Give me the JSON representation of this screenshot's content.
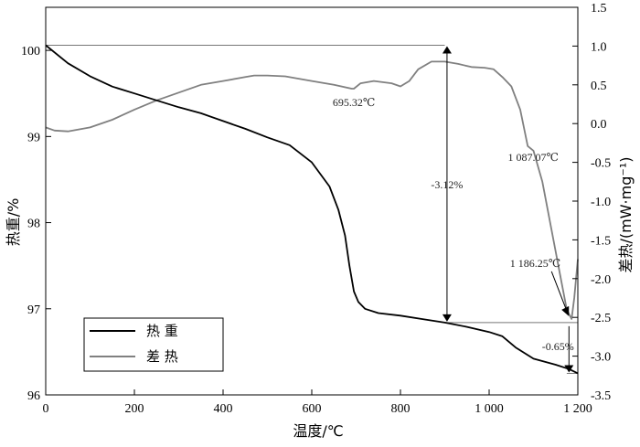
{
  "chart_data": {
    "type": "line",
    "title": "",
    "xlabel": "温度/℃",
    "ylabel_left": "热重/%",
    "ylabel_right": "差热/(mW·mg⁻¹)",
    "xlim": [
      0,
      1200
    ],
    "ylim_left": [
      96,
      100.5
    ],
    "ylim_right": [
      -3.5,
      1.5
    ],
    "x_ticks": [
      {
        "value": 0,
        "label": "0"
      },
      {
        "value": 200,
        "label": "200"
      },
      {
        "value": 400,
        "label": "400"
      },
      {
        "value": 600,
        "label": "600"
      },
      {
        "value": 800,
        "label": "800"
      },
      {
        "value": 1000,
        "label": "1 000"
      },
      {
        "value": 1200,
        "label": "1 200"
      }
    ],
    "y_left_ticks": [
      {
        "value": 96,
        "label": "96"
      },
      {
        "value": 97,
        "label": "97"
      },
      {
        "value": 98,
        "label": "98"
      },
      {
        "value": 99,
        "label": "99"
      },
      {
        "value": 100,
        "label": "100"
      }
    ],
    "y_right_ticks": [
      {
        "value": 1.5,
        "label": "1.5"
      },
      {
        "value": 1.0,
        "label": "1.0"
      },
      {
        "value": 0.5,
        "label": "0.5"
      },
      {
        "value": 0.0,
        "label": "0.0"
      },
      {
        "value": -0.5,
        "label": "-0.5"
      },
      {
        "value": -1.0,
        "label": "-1.0"
      },
      {
        "value": -1.5,
        "label": "-1.5"
      },
      {
        "value": -2.0,
        "label": "-2.0"
      },
      {
        "value": -2.5,
        "label": "-2.5"
      },
      {
        "value": -3.0,
        "label": "-3.0"
      },
      {
        "value": -3.5,
        "label": "-3.5"
      }
    ],
    "legend": {
      "placement": "bottom-left",
      "entries": [
        {
          "label": "热 重",
          "color": "#000000"
        },
        {
          "label": "差 热",
          "color": "#808080"
        }
      ]
    },
    "series": [
      {
        "name": "热 重",
        "axis": "left",
        "color": "#000000",
        "points": [
          [
            0,
            100.06
          ],
          [
            50,
            99.85
          ],
          [
            100,
            99.7
          ],
          [
            150,
            99.58
          ],
          [
            200,
            99.5
          ],
          [
            250,
            99.42
          ],
          [
            300,
            99.34
          ],
          [
            350,
            99.27
          ],
          [
            400,
            99.18
          ],
          [
            450,
            99.09
          ],
          [
            500,
            98.99
          ],
          [
            550,
            98.9
          ],
          [
            600,
            98.7
          ],
          [
            640,
            98.42
          ],
          [
            660,
            98.15
          ],
          [
            675,
            97.85
          ],
          [
            685,
            97.5
          ],
          [
            695,
            97.2
          ],
          [
            705,
            97.08
          ],
          [
            720,
            97.0
          ],
          [
            750,
            96.95
          ],
          [
            800,
            96.92
          ],
          [
            850,
            96.88
          ],
          [
            900,
            96.84
          ],
          [
            950,
            96.79
          ],
          [
            1000,
            96.73
          ],
          [
            1030,
            96.68
          ],
          [
            1060,
            96.55
          ],
          [
            1100,
            96.42
          ],
          [
            1150,
            96.35
          ],
          [
            1180,
            96.3
          ],
          [
            1200,
            96.25
          ]
        ]
      },
      {
        "name": "差 热",
        "axis": "right",
        "color": "#808080",
        "points": [
          [
            0,
            -0.05
          ],
          [
            20,
            -0.09
          ],
          [
            50,
            -0.1
          ],
          [
            100,
            -0.05
          ],
          [
            150,
            0.05
          ],
          [
            200,
            0.18
          ],
          [
            250,
            0.3
          ],
          [
            300,
            0.4
          ],
          [
            350,
            0.5
          ],
          [
            400,
            0.55
          ],
          [
            450,
            0.6
          ],
          [
            470,
            0.62
          ],
          [
            500,
            0.62
          ],
          [
            540,
            0.61
          ],
          [
            600,
            0.55
          ],
          [
            650,
            0.5
          ],
          [
            690,
            0.45
          ],
          [
            695,
            0.45
          ],
          [
            710,
            0.52
          ],
          [
            740,
            0.55
          ],
          [
            780,
            0.52
          ],
          [
            800,
            0.48
          ],
          [
            820,
            0.55
          ],
          [
            840,
            0.7
          ],
          [
            870,
            0.8
          ],
          [
            900,
            0.8
          ],
          [
            930,
            0.77
          ],
          [
            960,
            0.73
          ],
          [
            990,
            0.72
          ],
          [
            1010,
            0.7
          ],
          [
            1030,
            0.6
          ],
          [
            1050,
            0.48
          ],
          [
            1070,
            0.18
          ],
          [
            1087,
            -0.29
          ],
          [
            1100,
            -0.35
          ],
          [
            1120,
            -0.75
          ],
          [
            1140,
            -1.35
          ],
          [
            1160,
            -1.95
          ],
          [
            1175,
            -2.4
          ],
          [
            1186,
            -2.52
          ],
          [
            1192,
            -2.25
          ],
          [
            1200,
            -1.75
          ]
        ]
      }
    ],
    "annotations": [
      {
        "text": "695.32℃",
        "x": 695,
        "axis": "right",
        "y": 0.45
      },
      {
        "text": "1 087.07℃",
        "x": 1087,
        "axis": "right",
        "y": -0.29
      },
      {
        "text": "1 186.25℃",
        "x": 1186,
        "axis": "right",
        "y": -2.52
      },
      {
        "text": "-3.12%",
        "x": 905
      },
      {
        "text": "-0.65%",
        "x": 1180
      }
    ]
  }
}
